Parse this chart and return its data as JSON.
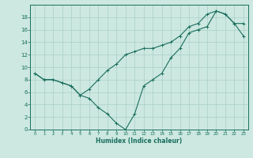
{
  "title": "",
  "xlabel": "Humidex (Indice chaleur)",
  "bg_color": "#cce8e0",
  "line_color": "#1a6e5e",
  "grid_color": "#aacfc8",
  "line1_x": [
    0,
    1,
    2,
    3,
    4,
    5,
    6,
    7,
    8,
    9,
    10,
    11,
    12,
    13,
    14,
    15,
    16,
    17,
    18,
    19,
    20,
    21,
    22,
    23
  ],
  "line1_y": [
    9,
    8,
    8,
    7.5,
    7,
    5.5,
    5,
    3.5,
    2.5,
    1,
    0,
    2.5,
    7,
    8,
    9,
    11.5,
    13,
    15.5,
    16,
    16.5,
    19,
    18.5,
    17,
    17
  ],
  "line2_x": [
    0,
    1,
    2,
    3,
    4,
    5,
    6,
    7,
    8,
    9,
    10,
    11,
    12,
    13,
    14,
    15,
    16,
    17,
    18,
    19,
    20,
    21,
    22,
    23
  ],
  "line2_y": [
    9,
    8,
    8,
    7.5,
    7,
    5.5,
    6.5,
    8,
    9.5,
    10.5,
    12,
    12.5,
    13,
    13,
    13.5,
    14,
    15,
    16.5,
    17,
    18.5,
    19,
    18.5,
    17,
    15
  ],
  "xlim": [
    -0.5,
    23.5
  ],
  "ylim": [
    0,
    20
  ],
  "xticks": [
    0,
    1,
    2,
    3,
    4,
    5,
    6,
    7,
    8,
    9,
    10,
    11,
    12,
    13,
    14,
    15,
    16,
    17,
    18,
    19,
    20,
    21,
    22,
    23
  ],
  "yticks": [
    0,
    2,
    4,
    6,
    8,
    10,
    12,
    14,
    16,
    18
  ]
}
